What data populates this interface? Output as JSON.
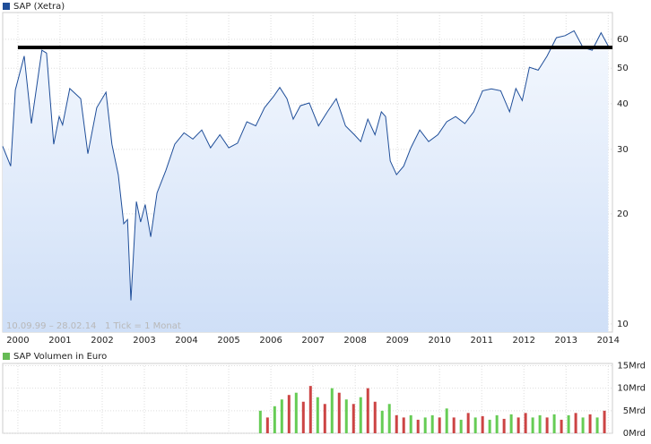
{
  "chart_data": [
    {
      "type": "line",
      "title": "SAP (Xetra)",
      "annotation": "10.09.99 – 28.02.14   1 Tick = 1 Monat",
      "color": "#1f4e99",
      "log_scale": true,
      "grid": true,
      "hline": 57,
      "hline_color": "#000000",
      "xlim": [
        1999.64,
        2014.1
      ],
      "xticks": [
        2000,
        2001,
        2002,
        2003,
        2004,
        2005,
        2006,
        2007,
        2008,
        2009,
        2010,
        2011,
        2012,
        2013,
        2014
      ],
      "ylim": [
        9.5,
        71
      ],
      "yticks": [
        10,
        20,
        30,
        40,
        50,
        60
      ],
      "x": [
        1999.64,
        1999.83,
        1999.94,
        2000.15,
        2000.32,
        2000.57,
        2000.68,
        2000.85,
        2000.98,
        2001.06,
        2001.23,
        2001.49,
        2001.66,
        2001.87,
        2002.09,
        2002.23,
        2002.38,
        2002.51,
        2002.6,
        2002.68,
        2002.81,
        2002.91,
        2003.02,
        2003.15,
        2003.3,
        2003.51,
        2003.72,
        2003.94,
        2004.15,
        2004.36,
        2004.57,
        2004.79,
        2005.0,
        2005.21,
        2005.43,
        2005.64,
        2005.85,
        2006.06,
        2006.21,
        2006.38,
        2006.53,
        2006.7,
        2006.91,
        2007.13,
        2007.34,
        2007.55,
        2007.77,
        2007.98,
        2008.13,
        2008.3,
        2008.47,
        2008.62,
        2008.72,
        2008.83,
        2008.98,
        2009.15,
        2009.32,
        2009.53,
        2009.74,
        2009.96,
        2010.17,
        2010.38,
        2010.6,
        2010.81,
        2011.02,
        2011.23,
        2011.45,
        2011.66,
        2011.81,
        2011.96,
        2012.13,
        2012.34,
        2012.55,
        2012.77,
        2012.98,
        2013.19,
        2013.4,
        2013.62,
        2013.83,
        2014.0
      ],
      "values": [
        30.6,
        27,
        43.6,
        54,
        35.3,
        56,
        55,
        31,
        36.9,
        35,
        44,
        41.3,
        29.2,
        39,
        43,
        31,
        25.6,
        18.8,
        19.3,
        11.6,
        21.6,
        19,
        21.2,
        17.3,
        22.8,
        26.3,
        31,
        33.3,
        32,
        33.9,
        30.3,
        32.9,
        30.3,
        31.2,
        35.7,
        34.8,
        39,
        41.8,
        44.3,
        41.3,
        36.3,
        39.5,
        40.2,
        34.8,
        38,
        41.3,
        34.8,
        32.9,
        31.5,
        36.3,
        32.9,
        38,
        36.9,
        27.9,
        25.6,
        27,
        30.3,
        33.9,
        31.5,
        32.9,
        35.7,
        36.9,
        35.3,
        38,
        43.4,
        43.9,
        43.4,
        38,
        44,
        40.8,
        50.3,
        49.4,
        54,
        60.6,
        61.4,
        63.3,
        57,
        56,
        62.5,
        57.5
      ]
    },
    {
      "type": "bar",
      "title": "SAP Volumen in Euro",
      "color": "#66bb55",
      "grid": true,
      "xlim": [
        1999.64,
        2014.1
      ],
      "xticks": [
        2000,
        2001,
        2002,
        2003,
        2004,
        2005,
        2006,
        2007,
        2008,
        2009,
        2010,
        2011,
        2012,
        2013,
        2014
      ],
      "ylim": [
        0,
        15.5
      ],
      "yticks": [
        {
          "value": 0,
          "label": "0Mrd"
        },
        {
          "value": 5,
          "label": "5Mrd"
        },
        {
          "value": 10,
          "label": "10Mrd"
        },
        {
          "value": 15,
          "label": "15Mrd"
        }
      ],
      "x": [
        2005.75,
        2005.92,
        2006.09,
        2006.26,
        2006.43,
        2006.6,
        2006.77,
        2006.94,
        2007.11,
        2007.28,
        2007.45,
        2007.62,
        2007.79,
        2007.96,
        2008.13,
        2008.3,
        2008.47,
        2008.64,
        2008.81,
        2008.98,
        2009.15,
        2009.32,
        2009.49,
        2009.66,
        2009.83,
        2010.0,
        2010.17,
        2010.34,
        2010.51,
        2010.68,
        2010.85,
        2011.02,
        2011.19,
        2011.36,
        2011.53,
        2011.7,
        2011.87,
        2012.04,
        2012.21,
        2012.38,
        2012.55,
        2012.72,
        2012.89,
        2013.06,
        2013.23,
        2013.4,
        2013.57,
        2013.74,
        2013.91
      ],
      "values": [
        5,
        3.5,
        6,
        7.5,
        8.5,
        9,
        7,
        10.5,
        8,
        6.5,
        10,
        9,
        7.5,
        6.5,
        8,
        10,
        7,
        5,
        6.5,
        4,
        3.5,
        4,
        3,
        3.5,
        4,
        3.5,
        5.5,
        3.5,
        3,
        4.5,
        3.5,
        3.8,
        3,
        4,
        3.2,
        4.2,
        3.5,
        4.5,
        3.5,
        4,
        3.5,
        4.2,
        3,
        4,
        4.5,
        3.5,
        4.2,
        3.5,
        5
      ],
      "colors": [
        "#66cc55",
        "#cc4444",
        "#66cc55",
        "#66cc55",
        "#cc4444",
        "#66cc55",
        "#cc4444",
        "#cc4444",
        "#66cc55",
        "#cc4444",
        "#66cc55",
        "#cc4444",
        "#66cc55",
        "#cc4444",
        "#66cc55",
        "#cc4444",
        "#cc4444",
        "#66cc55",
        "#66cc55",
        "#cc4444",
        "#cc4444",
        "#66cc55",
        "#cc4444",
        "#66cc55",
        "#66cc55",
        "#cc4444",
        "#66cc55",
        "#cc4444",
        "#66cc55",
        "#cc4444",
        "#66cc55",
        "#cc4444",
        "#66cc55",
        "#66cc55",
        "#cc4444",
        "#66cc55",
        "#cc4444",
        "#cc4444",
        "#66cc55",
        "#66cc55",
        "#cc4444",
        "#66cc55",
        "#cc4444",
        "#66cc55",
        "#cc4444",
        "#66cc55",
        "#cc4444",
        "#66cc55",
        "#cc4444"
      ]
    }
  ]
}
